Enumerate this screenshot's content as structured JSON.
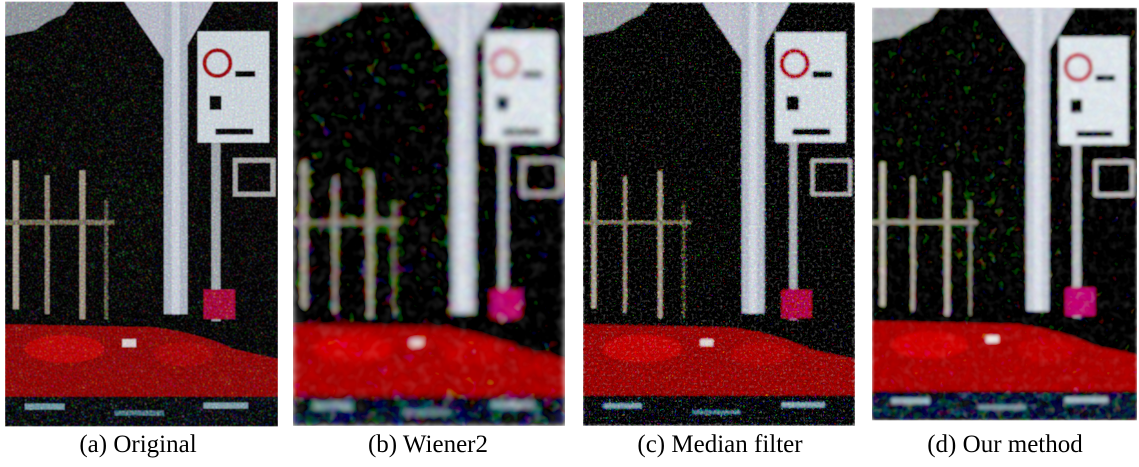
{
  "figure": {
    "panels": [
      {
        "caption": "(a) Original"
      },
      {
        "caption": "(b) Wiener2"
      },
      {
        "caption": "(c) Median filter"
      },
      {
        "caption": "(d) Our method"
      }
    ]
  }
}
